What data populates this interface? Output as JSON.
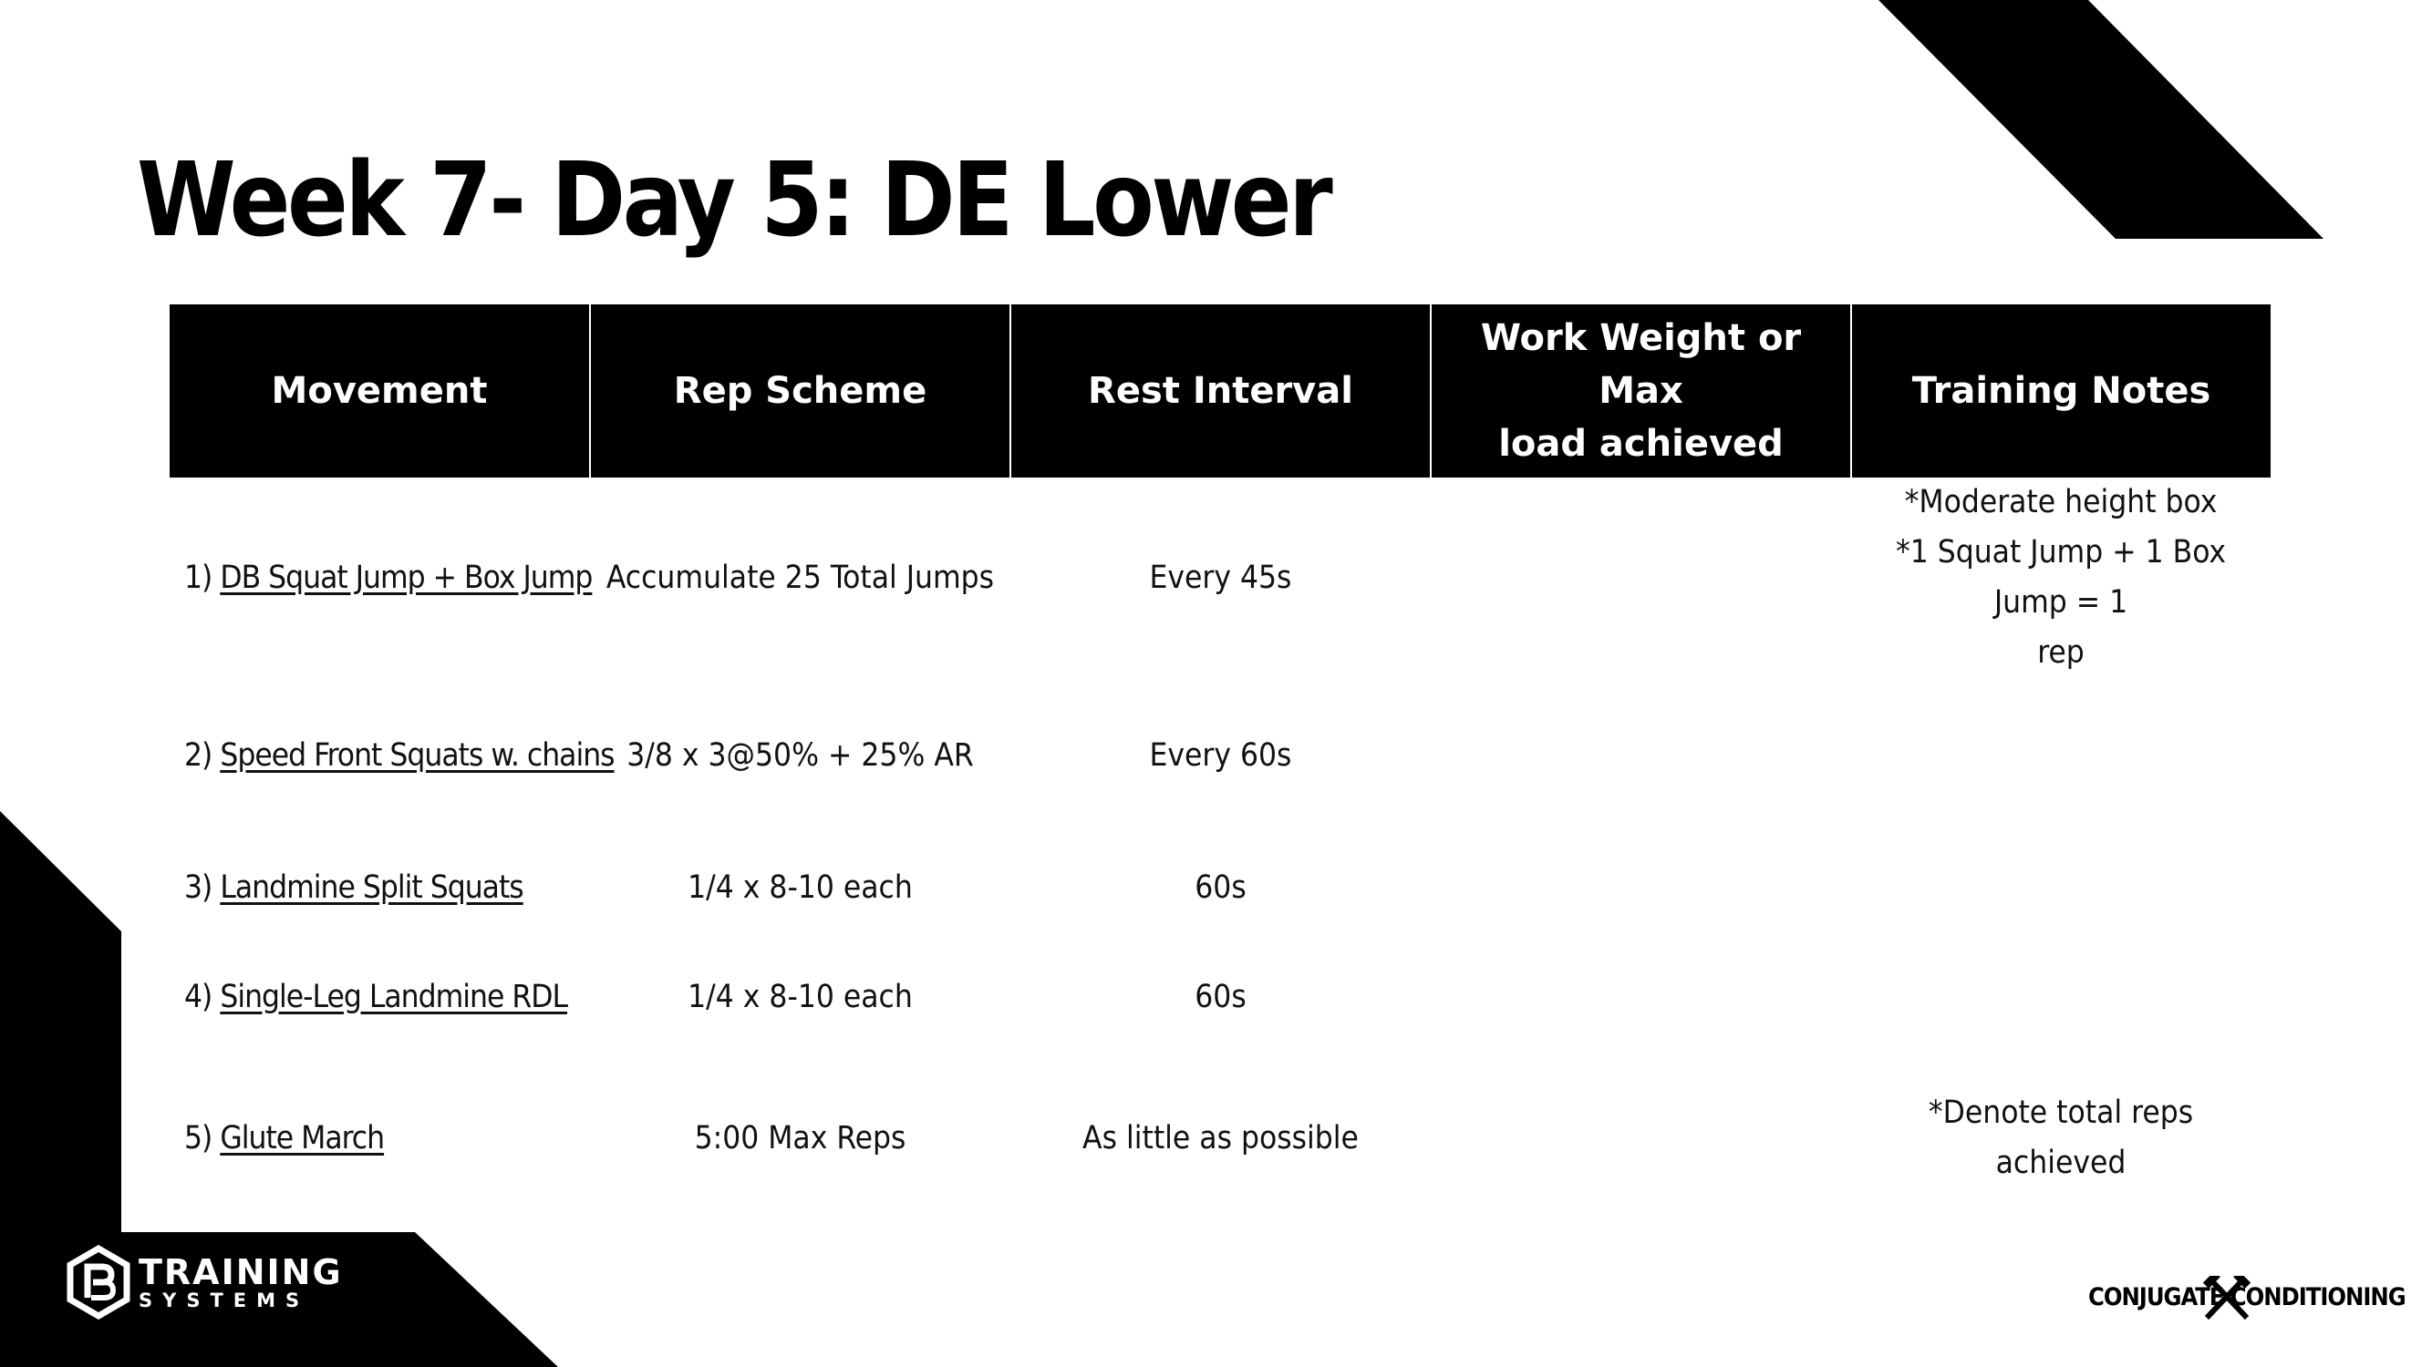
{
  "title": "Week 7- Day 5: DE Lower",
  "table": {
    "headers": {
      "movement": "Movement",
      "rep_scheme": "Rep Scheme",
      "rest_interval": "Rest Interval",
      "work_weight_line1": "Work Weight or Max",
      "work_weight_line2": "load achieved",
      "training_notes": "Training Notes"
    },
    "rows": [
      {
        "number": "1)",
        "movement": "DB Squat Jump + Box Jump",
        "rep_scheme": "Accumulate 25 Total Jumps",
        "rest_interval": "Every 45s",
        "work_weight": "",
        "notes_line1": "*Moderate height box",
        "notes_line2": "*1 Squat Jump + 1 Box Jump = 1",
        "notes_line3": "rep"
      },
      {
        "number": "2)",
        "movement": "Speed Front Squats w. chains",
        "rep_scheme": "3/8 x 3@50% + 25% AR",
        "rest_interval": "Every 60s",
        "work_weight": "",
        "notes_line1": ""
      },
      {
        "number": "3)",
        "movement": "Landmine Split Squats",
        "rep_scheme": "1/4 x 8-10 each",
        "rest_interval": "60s",
        "work_weight": "",
        "notes_line1": ""
      },
      {
        "number": "4)",
        "movement": "Single-Leg Landmine RDL",
        "rep_scheme": "1/4 x 8-10 each",
        "rest_interval": "60s",
        "work_weight": "",
        "notes_line1": ""
      },
      {
        "number": "5)",
        "movement": "Glute March",
        "rep_scheme": "5:00 Max Reps",
        "rest_interval": "As little as possible",
        "work_weight": "",
        "notes_line1": "*Denote total reps achieved"
      }
    ]
  },
  "footer": {
    "left_logo_line1": "TRAINING",
    "left_logo_line2": "SYSTEMS",
    "left_logo_icon": "pb-hexagon-logo-icon",
    "right_logo_text": "CONJUGATE CONDITIONING",
    "right_logo_icon": "crossed-hammers-icon"
  }
}
